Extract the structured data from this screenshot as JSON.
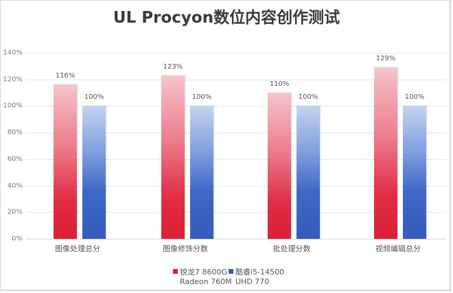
{
  "chart_data": {
    "type": "bar",
    "title": "UL Procyon数位内容创作测试",
    "xlabel": "",
    "ylabel": "",
    "ylim": [
      0,
      140
    ],
    "yticks": [
      "0%",
      "20%",
      "40%",
      "60%",
      "80%",
      "100%",
      "120%",
      "140%"
    ],
    "grid": true,
    "legend_position": "bottom",
    "categories": [
      "图像处理总分",
      "图像修饰分数",
      "批处理分数",
      "视频编辑总分"
    ],
    "series": [
      {
        "name": "锐龙7 8600G Radeon 760M",
        "color": "#dc1f38",
        "values": [
          116,
          123,
          110,
          129
        ],
        "labels": [
          "116%",
          "123%",
          "110%",
          "129%"
        ]
      },
      {
        "name": "酷睿i5-14500 UHD 770",
        "color": "#345cba",
        "values": [
          100,
          100,
          100,
          100
        ],
        "labels": [
          "100%",
          "100%",
          "100%",
          "100%"
        ]
      }
    ]
  },
  "legend": {
    "items": [
      {
        "line1": "锐龙7 8600G",
        "line2": "Radeon 760M",
        "color": "#dc1f38"
      },
      {
        "line1": "酷睿i5-14500",
        "line2": "UHD 770",
        "color": "#345cba"
      }
    ]
  }
}
